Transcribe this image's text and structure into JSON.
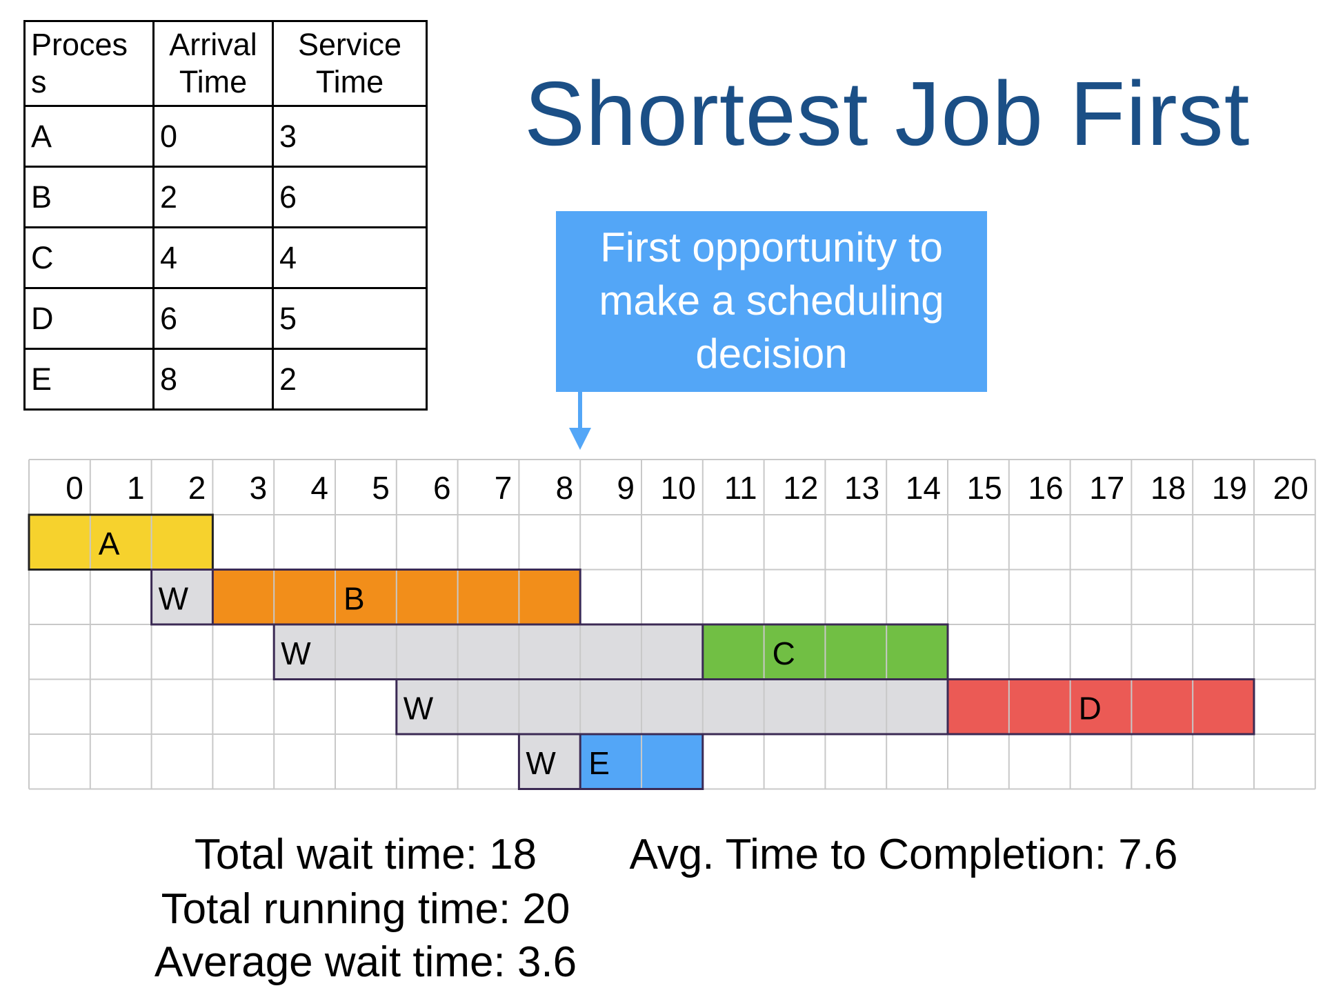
{
  "table": {
    "headers": [
      [
        "Proces",
        "s"
      ],
      [
        "Arrival",
        "Time"
      ],
      [
        "Service",
        "Time"
      ]
    ],
    "rows": [
      [
        "A",
        "0",
        "3"
      ],
      [
        "B",
        "2",
        "6"
      ],
      [
        "C",
        "4",
        "4"
      ],
      [
        "D",
        "6",
        "5"
      ],
      [
        "E",
        "8",
        "2"
      ]
    ]
  },
  "title": "Shortest Job First",
  "callout": {
    "lines": [
      "First opportunity to",
      "make a scheduling",
      "decision"
    ]
  },
  "gantt": {
    "ticks": [
      "0",
      "1",
      "2",
      "3",
      "4",
      "5",
      "6",
      "7",
      "8",
      "9",
      "10",
      "11",
      "12",
      "13",
      "14",
      "15",
      "16",
      "17",
      "18",
      "19",
      "20"
    ],
    "wait_label": "W",
    "rows": [
      {
        "process": "A",
        "color": "#f6d22d",
        "start": 0,
        "end": 3,
        "label_at": 1
      },
      {
        "process": "B",
        "color": "#f28e1a",
        "wait_start": 2,
        "start": 3,
        "end": 9,
        "label_at": 5
      },
      {
        "process": "C",
        "color": "#71bf44",
        "wait_start": 4,
        "start": 11,
        "end": 15,
        "label_at": 12
      },
      {
        "process": "D",
        "color": "#eb5a55",
        "wait_start": 6,
        "start": 15,
        "end": 20,
        "label_at": 17
      },
      {
        "process": "E",
        "color": "#53a6f7",
        "wait_start": 8,
        "start": 9,
        "end": 11,
        "label_at": 9
      }
    ],
    "wait_color": "#dcdcdf",
    "grid_color": "#c8c8c8"
  },
  "stats": {
    "total_wait": "Total wait time: 18",
    "total_running": "Total running time: 20",
    "average_wait": "Average wait time: 3.6",
    "avg_completion": "Avg. Time to Completion: 7.6"
  }
}
